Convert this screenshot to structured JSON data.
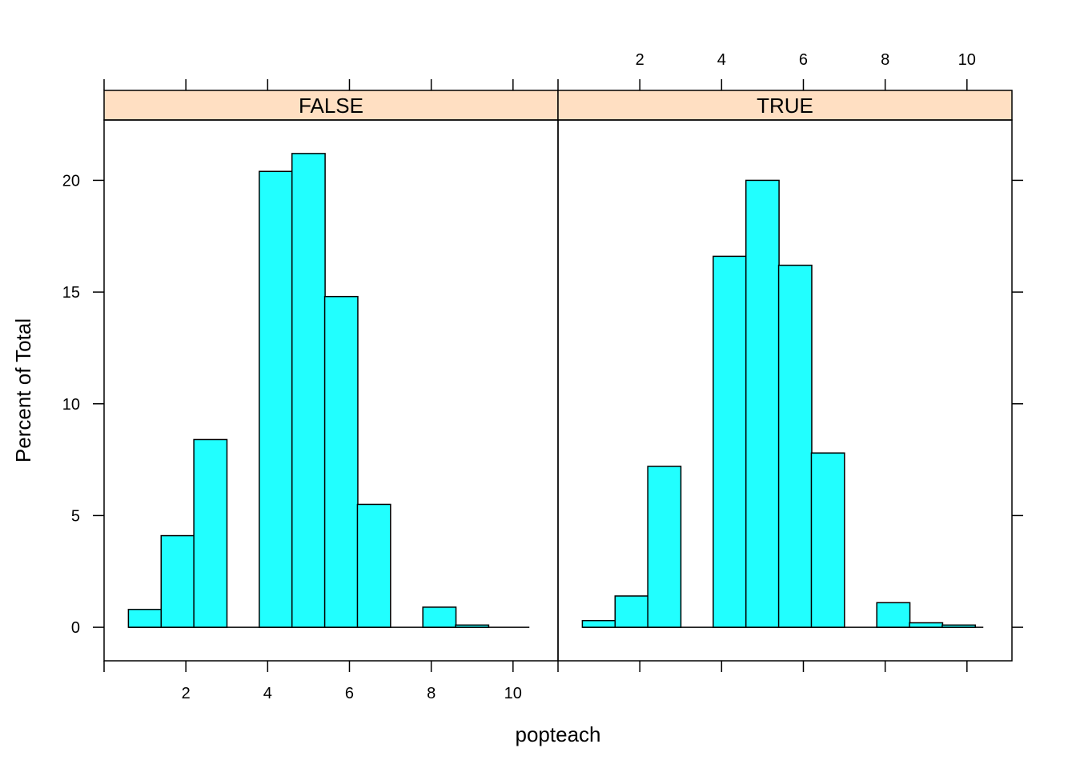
{
  "chart_data": {
    "type": "bar",
    "subtype": "histogram",
    "xlabel": "popteach",
    "ylabel": "Percent of Total",
    "xlim": [
      0,
      11.1
    ],
    "ylim": [
      -1.5,
      22.7
    ],
    "x_ticks": [
      2,
      4,
      6,
      8,
      10
    ],
    "y_ticks": [
      0,
      5,
      10,
      15,
      20
    ],
    "bar_width": 0.81,
    "bar_color": "#21FFFF",
    "strip_color": "#FFDFC2",
    "panels": [
      {
        "name": "FALSE",
        "range": [
          0.6,
          10.4
        ],
        "bins": [
          {
            "x": 1.0,
            "y": 0.8
          },
          {
            "x": 1.8,
            "y": 4.1
          },
          {
            "x": 2.6,
            "y": 8.4
          },
          {
            "x": 3.4,
            "y": 0
          },
          {
            "x": 4.2,
            "y": 20.4
          },
          {
            "x": 5.0,
            "y": 21.2
          },
          {
            "x": 5.8,
            "y": 14.8
          },
          {
            "x": 6.6,
            "y": 5.5
          },
          {
            "x": 7.4,
            "y": 0
          },
          {
            "x": 8.2,
            "y": 0.9
          },
          {
            "x": 9.0,
            "y": 0.1
          }
        ]
      },
      {
        "name": "TRUE",
        "range": [
          0.6,
          10.4
        ],
        "bins": [
          {
            "x": 1.0,
            "y": 0.3
          },
          {
            "x": 1.8,
            "y": 1.4
          },
          {
            "x": 2.6,
            "y": 7.2
          },
          {
            "x": 3.4,
            "y": 0
          },
          {
            "x": 4.2,
            "y": 16.6
          },
          {
            "x": 5.0,
            "y": 20.0
          },
          {
            "x": 5.8,
            "y": 16.2
          },
          {
            "x": 6.6,
            "y": 7.8
          },
          {
            "x": 7.4,
            "y": 0
          },
          {
            "x": 8.2,
            "y": 1.1
          },
          {
            "x": 9.0,
            "y": 0.2
          },
          {
            "x": 9.8,
            "y": 0.1
          }
        ]
      }
    ]
  }
}
